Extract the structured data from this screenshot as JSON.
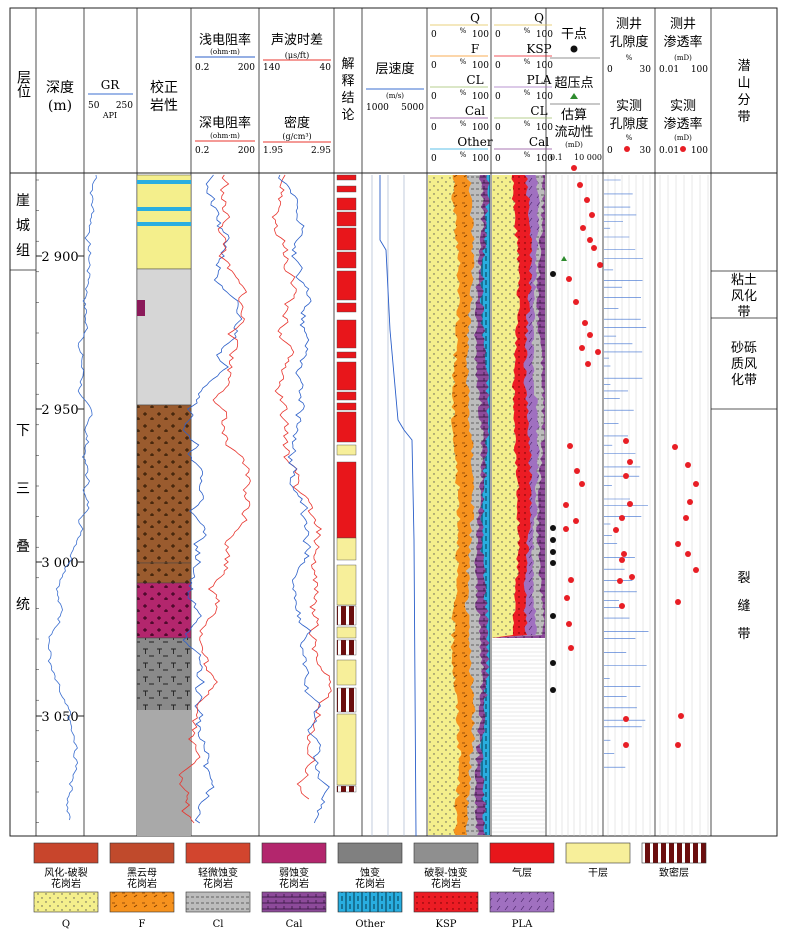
{
  "columns": {
    "layer": "层位",
    "depth": [
      "深度",
      "(m)"
    ],
    "gr": {
      "name": "GR",
      "min": "50",
      "max": "250",
      "unit": "API"
    },
    "lith": [
      "校正",
      "岩性"
    ],
    "shallow_res": {
      "name": "浅电阻率",
      "unit": "(ohm·m)",
      "min": "0.2",
      "max": "200"
    },
    "deep_res": {
      "name": "深电阻率",
      "unit": "(ohm·m)",
      "min": "0.2",
      "max": "200"
    },
    "sonic": {
      "name": "声波时差",
      "unit": "(μs/ft)",
      "min": "140",
      "max": "40"
    },
    "density": {
      "name": "密度",
      "unit": "(g/cm³)",
      "min": "1.95",
      "max": "2.95"
    },
    "interp": [
      "解",
      "释",
      "结",
      "论"
    ],
    "velocity": {
      "name": "层速度",
      "unit": "(m/s)",
      "min": "1000",
      "max": "5000"
    },
    "mineral1": [
      {
        "name": "Q",
        "unit": "%",
        "min": "0",
        "max": "100"
      },
      {
        "name": "F",
        "unit": "%",
        "min": "0",
        "max": "100"
      },
      {
        "name": "CL",
        "unit": "%",
        "min": "0",
        "max": "100"
      },
      {
        "name": "Cal",
        "unit": "%",
        "min": "0",
        "max": "100"
      },
      {
        "name": "Other",
        "unit": "%",
        "min": "0",
        "max": "100"
      }
    ],
    "mineral2": [
      {
        "name": "Q",
        "unit": "%",
        "min": "0",
        "max": "100"
      },
      {
        "name": "KSP",
        "unit": "%",
        "min": "0",
        "max": "100"
      },
      {
        "name": "PLA",
        "unit": "%",
        "min": "0",
        "max": "100"
      },
      {
        "name": "CL",
        "unit": "%",
        "min": "0",
        "max": "100"
      },
      {
        "name": "Cal",
        "unit": "%",
        "min": "0",
        "max": "100"
      }
    ],
    "points": {
      "dry": "干点",
      "over": "超压点",
      "perm": [
        "估算",
        "流动性"
      ],
      "perm_unit": "(mD)",
      "perm_min": "0.1",
      "perm_max": "10 000"
    },
    "porosity": {
      "log": [
        "测井",
        "孔隙度"
      ],
      "unit": "%",
      "min": "0",
      "max": "30",
      "meas": [
        "实测",
        "孔隙度"
      ]
    },
    "permeab": {
      "log": [
        "测井",
        "渗透率"
      ],
      "unit": "(mD)",
      "min": "0.01",
      "max": "100",
      "meas": [
        "实测",
        "渗透率"
      ]
    },
    "zone": [
      "潜",
      "山",
      "分",
      "带"
    ]
  },
  "depth_ticks": [
    "2 900",
    "2 950",
    "3 000",
    "3 050"
  ],
  "formations": [
    {
      "name": [
        "崖",
        "城",
        "组"
      ]
    },
    {
      "name": [
        "下",
        "三",
        "叠",
        "统"
      ]
    }
  ],
  "zones": [
    {
      "name": [
        "粘土",
        "风化",
        "带"
      ]
    },
    {
      "name": [
        "砂砾",
        "质风",
        "化带"
      ]
    },
    {
      "name": [
        "裂",
        "缝",
        "带"
      ]
    }
  ],
  "legend_row1": [
    {
      "label": [
        "风化-破裂",
        "花岗岩"
      ],
      "color": "#d0402a"
    },
    {
      "label": [
        "黑云母",
        "花岗岩"
      ],
      "color": "#c24a2c"
    },
    {
      "label": [
        "轻微蚀变",
        "花岗岩"
      ],
      "color": "#d2452e"
    },
    {
      "label": [
        "弱蚀变",
        "花岗岩"
      ],
      "color": "#b3266d"
    },
    {
      "label": [
        "蚀变",
        "花岗岩"
      ],
      "color": "#808080"
    },
    {
      "label": [
        "破裂-蚀变",
        "花岗岩"
      ],
      "color": "#8f8f8f"
    },
    {
      "label": [
        "气层"
      ],
      "color": "#e8161b"
    },
    {
      "label": [
        "干层"
      ],
      "color": "#f7ef9a"
    },
    {
      "label": [
        "致密层"
      ],
      "color": "#6b0e0e"
    }
  ],
  "legend_row2": [
    {
      "label": "Q",
      "color": "#f4ef8c"
    },
    {
      "label": "F",
      "color": "#f6921e"
    },
    {
      "label": "Cl",
      "color": "#bcbcbc"
    },
    {
      "label": "Cal",
      "color": "#8d4a9a"
    },
    {
      "label": "Other",
      "color": "#29aee0"
    },
    {
      "label": "KSP",
      "color": "#ec1c24"
    },
    {
      "label": "PLA",
      "color": "#a070c0"
    }
  ],
  "colors": {
    "gr": "#3b6fd0",
    "res_shallow": "#2b5fc9",
    "res_deep": "#e8352e",
    "sonic": "#e8352e",
    "density": "#2b5fc9",
    "gas": "#e8161b",
    "dry": "#f7ef9a",
    "tight": "#6b0e0e"
  }
}
